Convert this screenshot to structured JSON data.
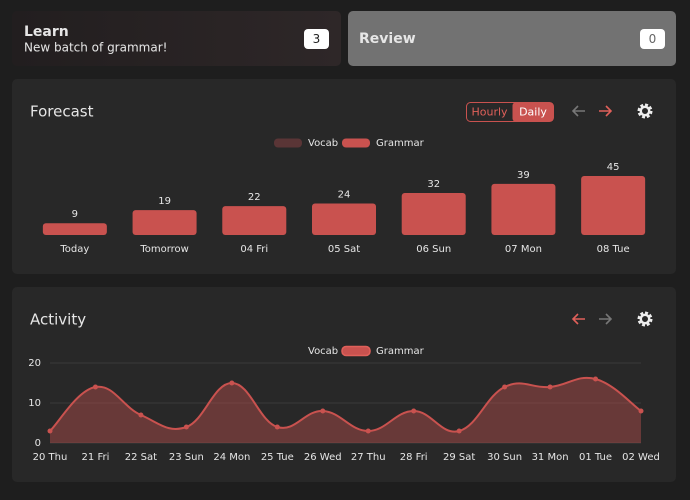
{
  "cards": [
    {
      "title": "Learn",
      "subtitle": "New batch of grammar!",
      "count": 3
    },
    {
      "title": "Review",
      "count": 0
    }
  ],
  "forecast_modes": {
    "options": [
      "Hourly",
      "Daily"
    ],
    "active": 1
  },
  "chart_data": [
    {
      "type": "bar",
      "stacked": true,
      "title": "Forecast",
      "categories": [
        "Today",
        "Tomorrow",
        "04 Fri",
        "05 Sat",
        "06 Sun",
        "07 Mon",
        "08 Tue"
      ],
      "series": [
        {
          "name": "Vocab",
          "color": "#5a3536",
          "values": [
            0,
            0,
            0,
            0,
            0,
            0,
            0
          ]
        },
        {
          "name": "Grammar",
          "color": "#c9524f",
          "values": [
            9,
            19,
            22,
            24,
            32,
            39,
            45
          ]
        }
      ],
      "ylim": [
        0,
        45
      ]
    },
    {
      "type": "area",
      "title": "Activity",
      "categories": [
        "20 Thu",
        "21 Fri",
        "22 Sat",
        "23 Sun",
        "24 Mon",
        "25 Tue",
        "26 Wed",
        "27 Thu",
        "28 Fri",
        "29 Sat",
        "30 Sun",
        "31 Mon",
        "01 Tue",
        "02 Wed"
      ],
      "series": [
        {
          "name": "Vocab",
          "color": "#5a3536",
          "hidden": true,
          "values": [
            0,
            0,
            0,
            0,
            0,
            0,
            0,
            0,
            0,
            0,
            0,
            0,
            0,
            0
          ]
        },
        {
          "name": "Grammar",
          "color": "#c9524f",
          "values": [
            3,
            14,
            7,
            4,
            15,
            4,
            8,
            3,
            8,
            3,
            14,
            14,
            16,
            8
          ]
        }
      ],
      "ylim": [
        0,
        20
      ],
      "yticks": [
        0,
        10,
        20
      ],
      "grid": true
    }
  ]
}
